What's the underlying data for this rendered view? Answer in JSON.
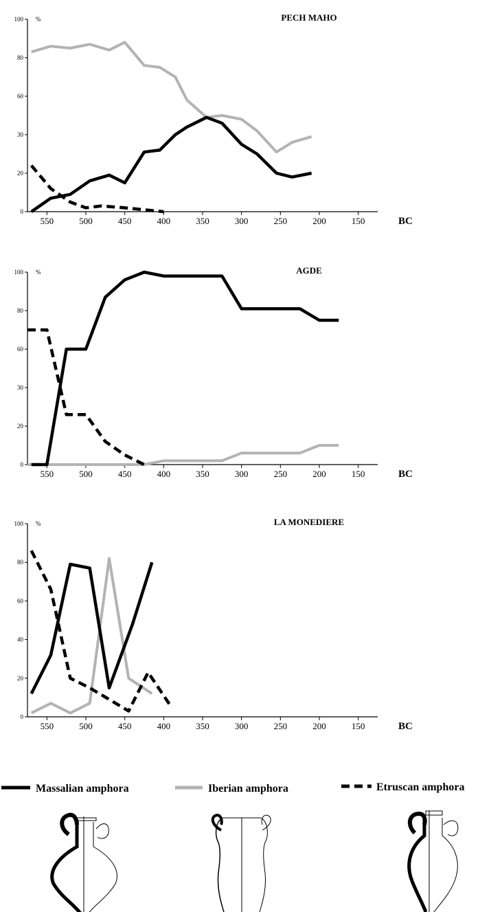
{
  "chart_data": [
    {
      "type": "line",
      "title": "PECH MAHO",
      "ylabel": "%",
      "xlabel": "BC",
      "ylim": [
        0,
        100
      ],
      "xlim": [
        575,
        125
      ],
      "x_ticks": [
        550,
        500,
        450,
        400,
        350,
        300,
        250,
        200,
        150
      ],
      "y_ticks": [
        0,
        20,
        30,
        60,
        80,
        100
      ],
      "series": [
        {
          "name": "Massalian amphora",
          "style": "solid-black",
          "x": [
            570,
            545,
            520,
            495,
            470,
            450,
            425,
            405,
            385,
            370,
            345,
            325,
            300,
            280,
            255,
            235,
            210
          ],
          "y": [
            0,
            7,
            9,
            16,
            19,
            15,
            31,
            32,
            40,
            44,
            49,
            46,
            35,
            30,
            20,
            18,
            20
          ]
        },
        {
          "name": "Iberian amphora",
          "style": "solid-grey",
          "x": [
            570,
            545,
            520,
            495,
            470,
            450,
            425,
            405,
            385,
            370,
            345,
            325,
            300,
            280,
            255,
            235,
            210
          ],
          "y": [
            83,
            86,
            85,
            87,
            84,
            88,
            76,
            75,
            70,
            58,
            49,
            50,
            48,
            42,
            31,
            36,
            39
          ]
        },
        {
          "name": "Etruscan amphora",
          "style": "dashed-black",
          "x": [
            570,
            545,
            520,
            500,
            480,
            450,
            425,
            400
          ],
          "y": [
            24,
            12,
            5,
            2,
            3,
            2,
            1,
            0
          ]
        }
      ]
    },
    {
      "type": "line",
      "title": "AGDE",
      "ylabel": "%",
      "xlabel": "BC",
      "ylim": [
        0,
        100
      ],
      "xlim": [
        575,
        125
      ],
      "x_ticks": [
        550,
        500,
        450,
        400,
        350,
        300,
        250,
        200,
        150
      ],
      "y_ticks": [
        0,
        20,
        30,
        60,
        80,
        100
      ],
      "series": [
        {
          "name": "Massalian amphora",
          "style": "solid-black",
          "x": [
            570,
            550,
            525,
            500,
            475,
            450,
            425,
            400,
            375,
            350,
            325,
            300,
            275,
            250,
            225,
            200,
            175
          ],
          "y": [
            0,
            0,
            60,
            60,
            87,
            96,
            100,
            98,
            98,
            98,
            98,
            81,
            81,
            81,
            81,
            75,
            75
          ]
        },
        {
          "name": "Iberian amphora",
          "style": "solid-grey",
          "x": [
            575,
            550,
            500,
            450,
            425,
            400,
            375,
            350,
            325,
            300,
            275,
            250,
            225,
            200,
            175
          ],
          "y": [
            0,
            0,
            0,
            0,
            0,
            2,
            2,
            2,
            2,
            6,
            6,
            6,
            6,
            10,
            10
          ]
        },
        {
          "name": "Etruscan amphora",
          "style": "dashed-black",
          "x": [
            575,
            550,
            525,
            500,
            475,
            450,
            425
          ],
          "y": [
            70,
            70,
            26,
            26,
            12,
            5,
            0
          ]
        }
      ]
    },
    {
      "type": "line",
      "title": "LA MONEDIERE",
      "ylabel": "%",
      "xlabel": "BC",
      "ylim": [
        0,
        100
      ],
      "xlim": [
        575,
        125
      ],
      "x_ticks": [
        550,
        500,
        450,
        400,
        350,
        300,
        250,
        200,
        150
      ],
      "y_ticks": [
        0,
        20,
        40,
        60,
        80,
        100
      ],
      "series": [
        {
          "name": "Massalian amphora",
          "style": "solid-black",
          "x": [
            570,
            545,
            520,
            495,
            470,
            440,
            415
          ],
          "y": [
            12,
            32,
            79,
            77,
            15,
            48,
            80
          ]
        },
        {
          "name": "Iberian amphora",
          "style": "solid-grey",
          "x": [
            570,
            545,
            520,
            495,
            470,
            445,
            415
          ],
          "y": [
            2,
            7,
            2,
            7,
            82,
            20,
            12
          ]
        },
        {
          "name": "Etruscan amphora",
          "style": "dashed-black",
          "x": [
            570,
            545,
            520,
            495,
            470,
            445,
            420,
            390
          ],
          "y": [
            86,
            66,
            20,
            15,
            9,
            3,
            23,
            5
          ]
        }
      ]
    }
  ],
  "legend": {
    "items": [
      {
        "label": "Massalian amphora",
        "style": "solid-black"
      },
      {
        "label": "Iberian amphora",
        "style": "solid-grey"
      },
      {
        "label": "Etruscan amphora",
        "style": "dashed-black"
      }
    ]
  },
  "colors": {
    "massalian": "#000000",
    "iberian": "#b3b3b3",
    "etruscan": "#000000"
  },
  "illustrations": [
    "massalian-amphora-icon",
    "iberian-amphora-icon",
    "etruscan-amphora-icon"
  ]
}
